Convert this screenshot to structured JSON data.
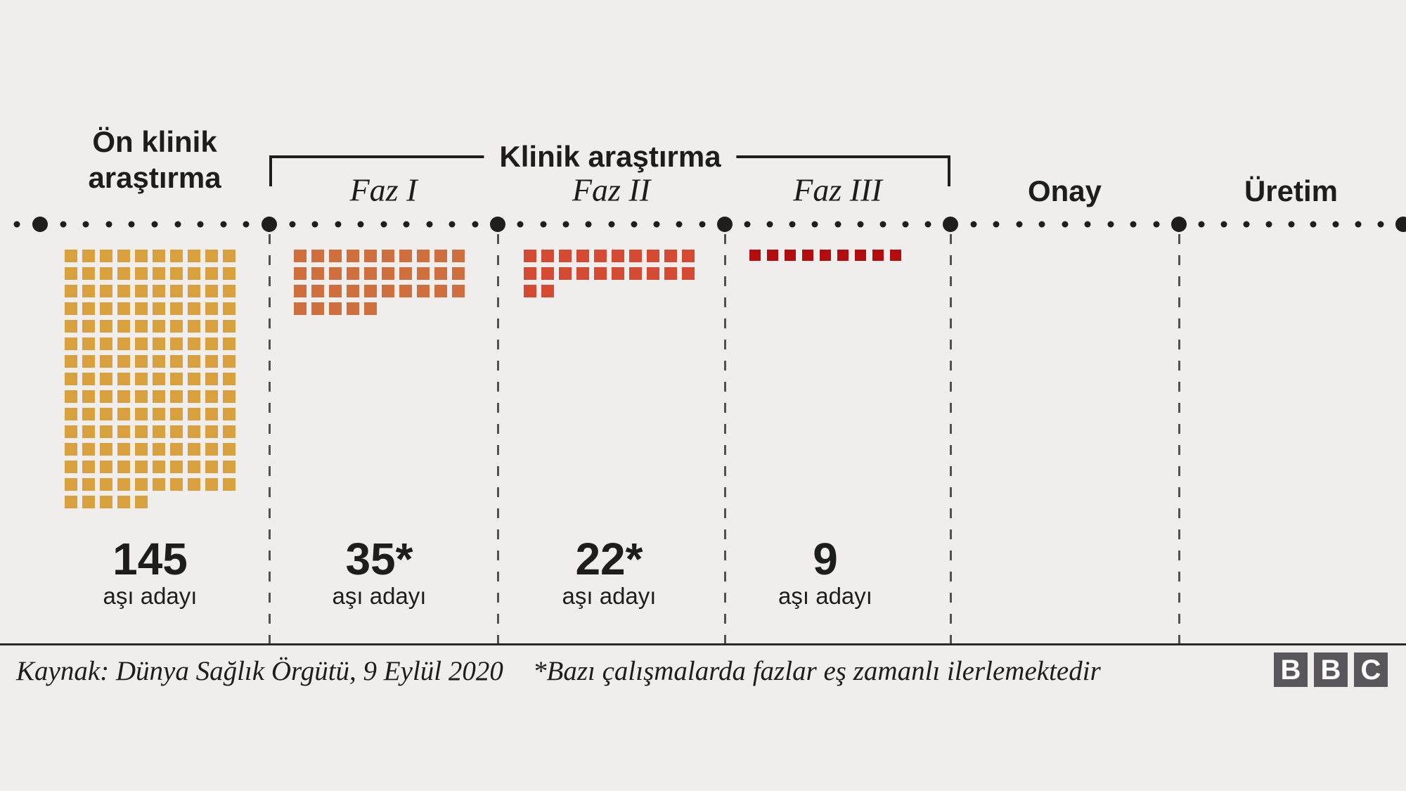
{
  "background_color": "#efeeec",
  "text_color": "#1d1d1b",
  "header": {
    "preclinical": {
      "line1": "Ön klinik",
      "line2": "araştırma"
    },
    "clinical_bracket_label": "Klinik araştırma"
  },
  "stages": [
    {
      "id": "on-klinik-arastirma",
      "label": "Ön klinik araştırma",
      "count": 145,
      "count_label": "145",
      "unit_label": "aşı adayı",
      "square_color": "#d8a13d"
    },
    {
      "id": "faz-1",
      "label": "Faz I",
      "count": 35,
      "count_label": "35*",
      "unit_label": "aşı adayı",
      "square_color": "#cf6f3d"
    },
    {
      "id": "faz-2",
      "label": "Faz II",
      "count": 22,
      "count_label": "22*",
      "unit_label": "aşı adayı",
      "square_color": "#d54a33"
    },
    {
      "id": "faz-3",
      "label": "Faz III",
      "count": 9,
      "count_label": "9",
      "unit_label": "aşı adayı",
      "square_color": "#b30d10"
    },
    {
      "id": "onay",
      "label": "Onay",
      "count": null
    },
    {
      "id": "uretim",
      "label": "Üretim",
      "count": null
    }
  ],
  "chart_data": {
    "type": "pictogram",
    "title": "Klinik araştırma",
    "categories": [
      "Ön klinik araştırma",
      "Faz I",
      "Faz II",
      "Faz III",
      "Onay",
      "Üretim"
    ],
    "values": [
      145,
      35,
      22,
      9,
      null,
      null
    ],
    "value_labels": [
      "145",
      "35*",
      "22*",
      "9"
    ],
    "unit": "aşı adayı",
    "squares_per_row": 10,
    "colors": [
      "#d8a13d",
      "#cf6f3d",
      "#d54a33",
      "#b30d10"
    ],
    "timeline": {
      "milestone_count": 7,
      "dot_color": "#1f1e1c",
      "style": "dotted-horizontal"
    },
    "legend_position": "none",
    "grid": false
  },
  "footer": {
    "source": "Kaynak: Dünya Sağlık Örgütü, 9 Eylül 2020",
    "note": "*Bazı çalışmalarda fazlar eş zamanlı ilerlemektedir"
  },
  "logo": {
    "letters": [
      "B",
      "B",
      "C"
    ],
    "block_color": "#5a575c",
    "letter_color": "#ffffff"
  }
}
